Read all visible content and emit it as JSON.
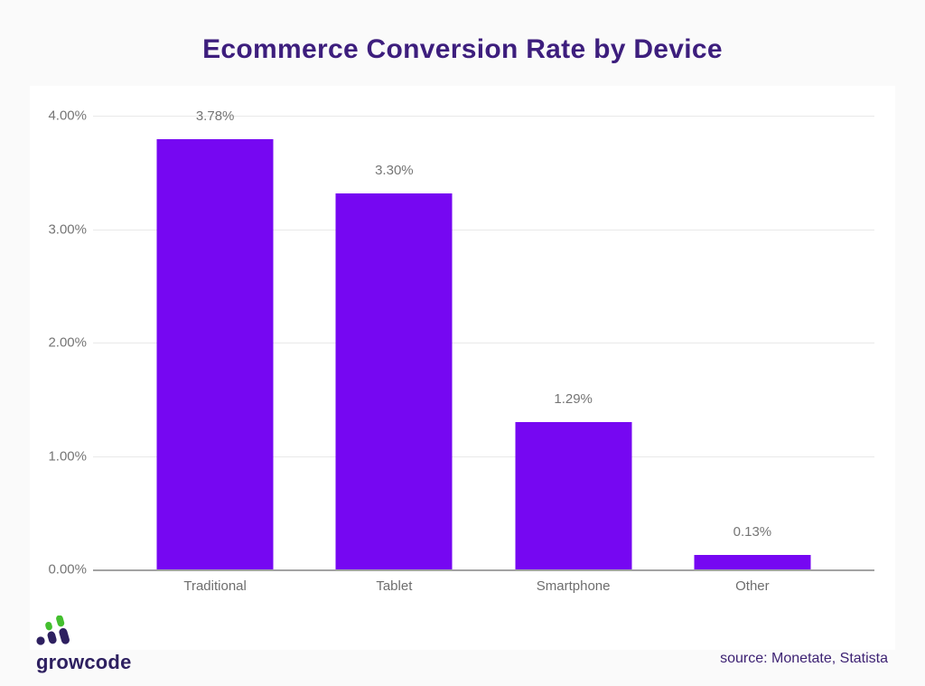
{
  "title": "Ecommerce Conversion Rate by Device",
  "source_credit": "source: Monetate, Statista",
  "logo": {
    "text": "growcode",
    "icon": "growth-bars-icon"
  },
  "colors": {
    "bar": "#7607f2",
    "title": "#3d1e7d",
    "tick_label": "#757575",
    "category_label": "#6e6e6e",
    "gridline": "#e9e9e9",
    "axis_line": "#a3a3a3",
    "card_background": "#ffffff",
    "page_background": "#fafafa",
    "logo_purple": "#2e2060",
    "logo_green": "#43bf2e",
    "source_text": "#3d2273"
  },
  "chart_data": {
    "type": "bar",
    "title": "Ecommerce Conversion Rate by Device",
    "categories": [
      "Traditional",
      "Tablet",
      "Smartphone",
      "Other"
    ],
    "values": [
      3.78,
      3.3,
      1.29,
      0.13
    ],
    "value_labels": [
      "3.78%",
      "3.30%",
      "1.29%",
      "0.13%"
    ],
    "xlabel": "",
    "ylabel": "",
    "ylim": [
      0,
      4
    ],
    "ytick_values": [
      4,
      3,
      2,
      1,
      0
    ],
    "yticks": [
      "4.00%",
      "3.00%",
      "2.00%",
      "1.00%",
      "0.00%"
    ],
    "grid": true,
    "legend": false,
    "bar_color": "#7607f2"
  }
}
